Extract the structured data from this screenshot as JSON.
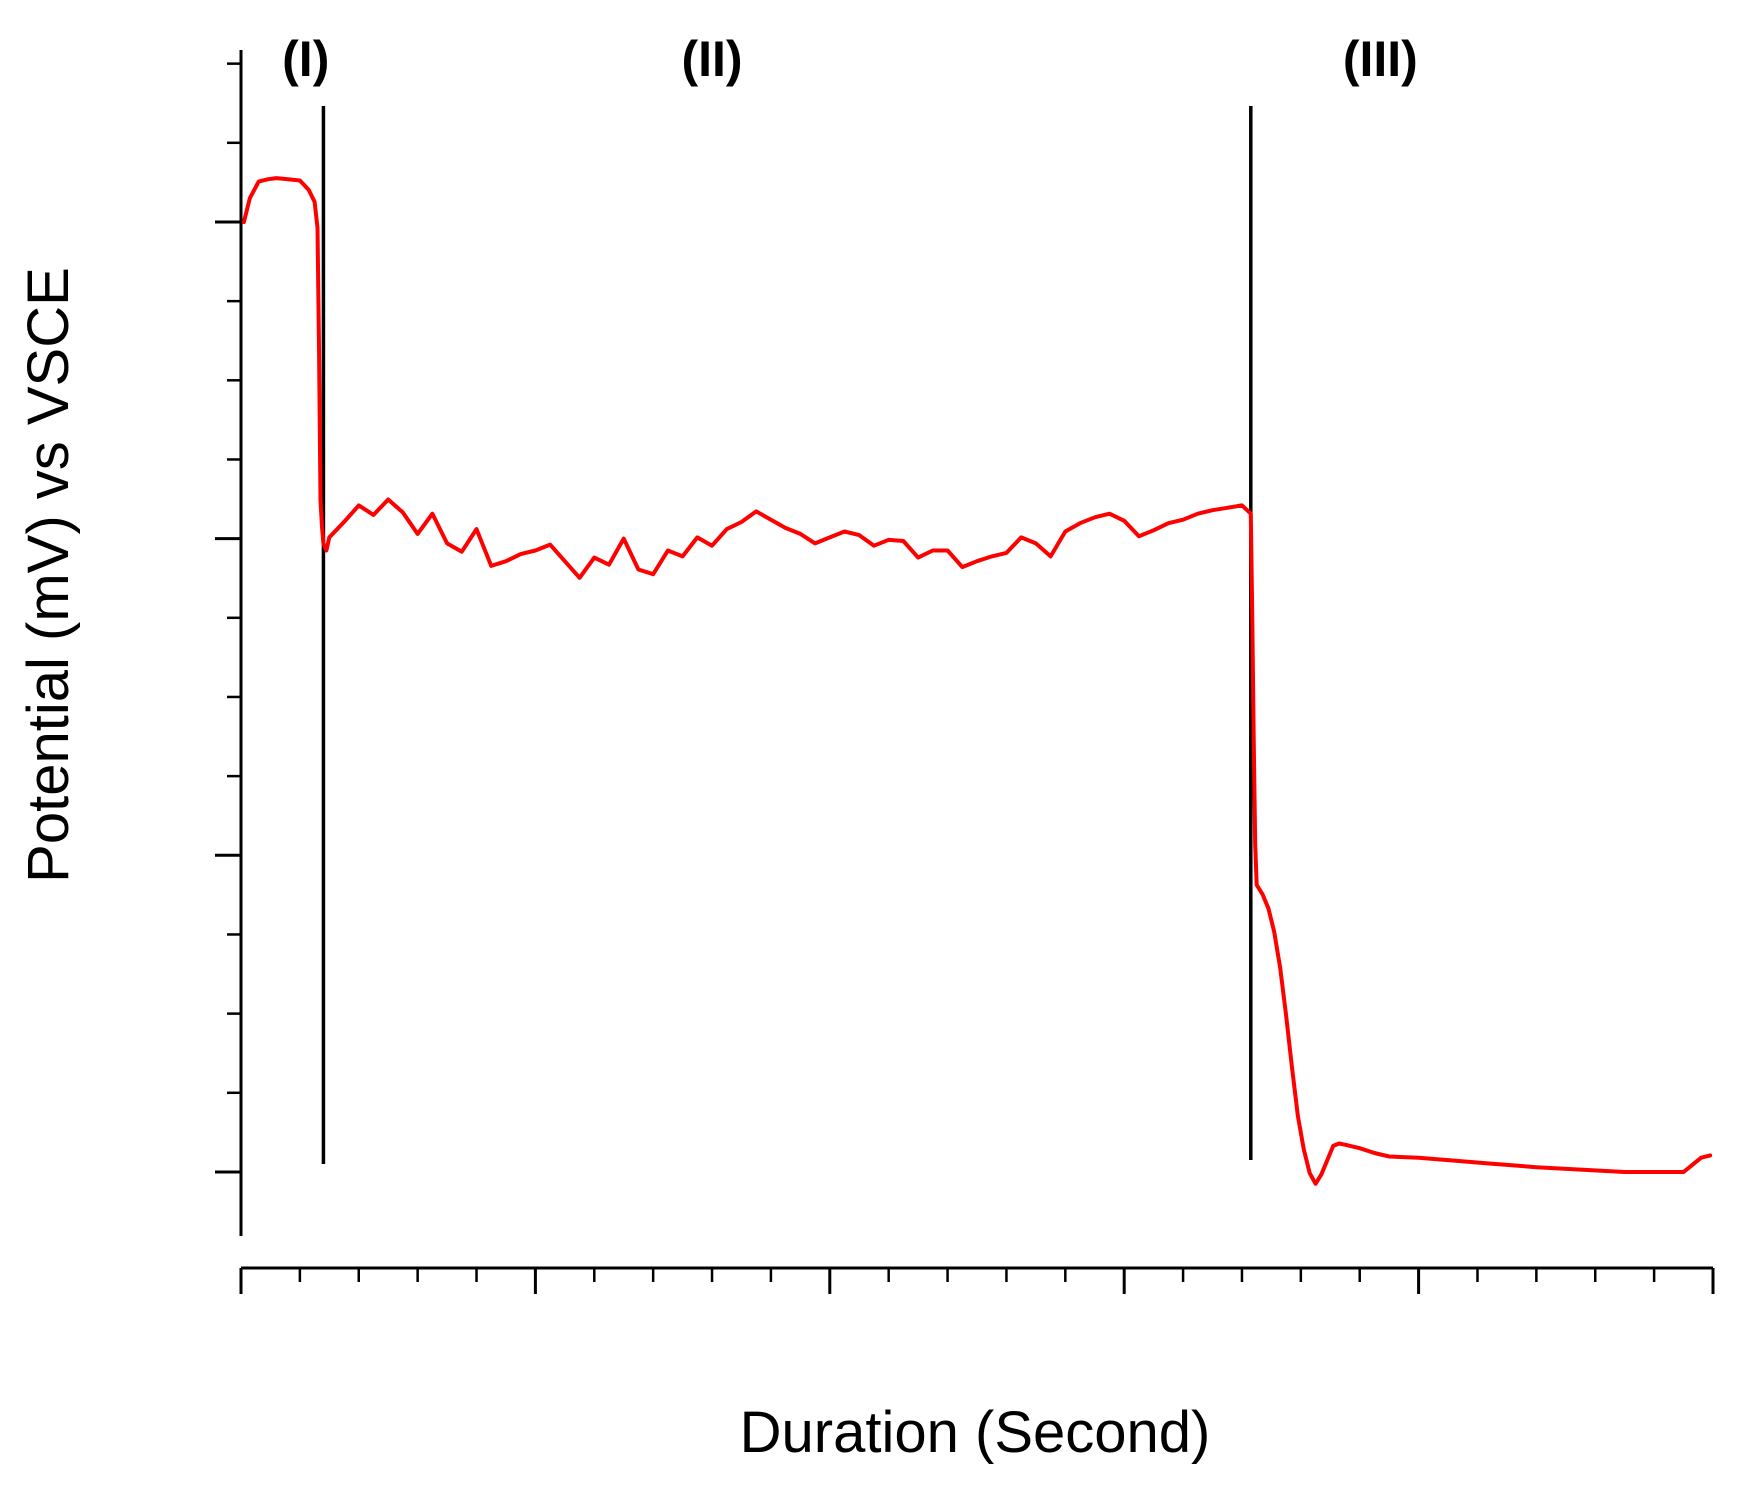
{
  "chart_data": {
    "type": "line",
    "xlabel": "Duration (Second)",
    "ylabel": "Potential (mV) vs VSCE",
    "xlim": [
      0,
      100
    ],
    "ylim": [
      0,
      100
    ],
    "grid": false,
    "legend": "none",
    "tick_labels_shown": false,
    "x_ticks": {
      "major": [
        0,
        20,
        40,
        60,
        80,
        100
      ],
      "minor_step": 4
    },
    "y_ticks": {
      "major": [
        5.4,
        32.1,
        58.8,
        85.5
      ],
      "minor_step": 6.675
    },
    "region_boundaries": [
      5.6,
      68.6
    ],
    "region_labels": [
      {
        "text": "(I)",
        "x": 4.4
      },
      {
        "text": "(II)",
        "x": 32.0
      },
      {
        "text": "(III)",
        "x": 77.4
      }
    ],
    "series": [
      {
        "color": "#ff0000",
        "x": [
          0.2,
          0.6,
          1.2,
          1.8,
          2.4,
          3.2,
          4.0,
          4.6,
          5.0,
          5.2,
          5.3,
          5.4,
          5.5,
          5.6,
          5.8,
          6.0,
          7,
          8,
          9,
          10,
          11,
          12,
          13,
          14,
          15,
          16,
          17,
          18,
          19,
          20,
          21,
          22,
          23,
          24,
          25,
          26,
          27,
          28,
          29,
          30,
          31,
          32,
          33,
          34,
          35,
          36,
          37,
          38,
          39,
          40,
          41,
          42,
          43,
          44,
          45,
          46,
          47,
          48,
          49,
          50,
          51,
          52,
          53,
          54,
          55,
          56,
          57,
          58,
          59,
          60,
          61,
          62,
          63,
          64,
          65,
          66,
          67,
          68,
          68.6,
          68.7,
          68.8,
          68.9,
          69.0,
          69.4,
          69.8,
          70.2,
          70.6,
          71.0,
          71.4,
          71.8,
          72.2,
          72.6,
          73.0,
          73.4,
          73.8,
          74.2,
          74.6,
          75.0,
          76,
          77,
          78,
          80,
          82,
          85,
          88,
          91,
          94,
          96,
          97,
          98,
          98.6,
          99.2,
          99.8
        ],
        "y": [
          85.5,
          87.5,
          88.9,
          89.1,
          89.2,
          89.1,
          89.0,
          88.2,
          87.2,
          85.0,
          75.0,
          62.0,
          59.8,
          58.4,
          57.8,
          58.9,
          60.2,
          61.6,
          60.8,
          62.1,
          61.0,
          59.2,
          60.9,
          58.4,
          57.7,
          59.6,
          56.5,
          56.9,
          57.5,
          57.8,
          58.3,
          56.9,
          55.5,
          57.2,
          56.6,
          58.8,
          56.2,
          55.8,
          57.8,
          57.3,
          58.9,
          58.2,
          59.6,
          60.2,
          61.1,
          60.4,
          59.7,
          59.2,
          58.4,
          58.9,
          59.4,
          59.1,
          58.2,
          58.7,
          58.6,
          57.2,
          57.8,
          57.8,
          56.4,
          56.9,
          57.3,
          57.6,
          58.9,
          58.4,
          57.3,
          59.4,
          60.1,
          60.6,
          60.9,
          60.3,
          59.0,
          59.5,
          60.1,
          60.4,
          60.9,
          61.2,
          61.4,
          61.6,
          60.9,
          52.0,
          42.0,
          33.0,
          29.6,
          28.8,
          27.6,
          25.6,
          22.6,
          18.6,
          14.2,
          10.1,
          7.3,
          5.3,
          4.4,
          5.2,
          6.4,
          7.6,
          7.8,
          7.7,
          7.4,
          7.0,
          6.7,
          6.6,
          6.4,
          6.1,
          5.8,
          5.6,
          5.4,
          5.4,
          5.4,
          5.4,
          6.0,
          6.6,
          6.8
        ]
      }
    ]
  }
}
